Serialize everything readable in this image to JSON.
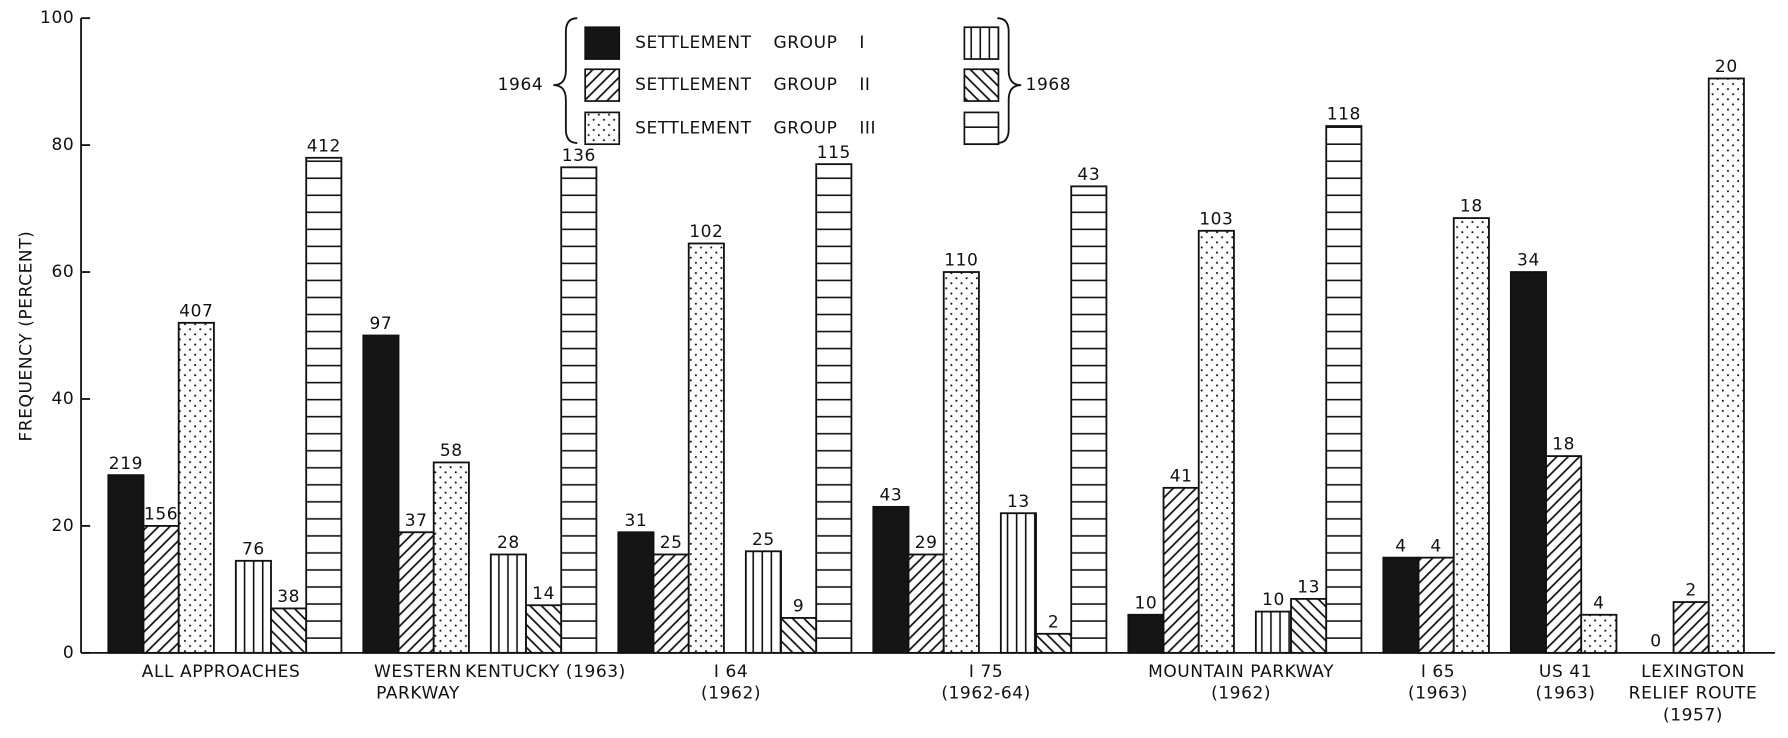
{
  "chart_data": {
    "type": "bar",
    "ylabel": "FREQUENCY (PERCENT)",
    "ylim": [
      0,
      100
    ],
    "yticks": [
      0,
      20,
      40,
      60,
      80,
      100
    ],
    "years": [
      "1964",
      "1968"
    ],
    "categories": [
      [
        "ALL APPROACHES"
      ],
      [
        "WESTERN",
        "PARKWAY"
      ],
      [
        "KENTUCKY (1963)"
      ],
      [
        "I 64",
        "(1962)"
      ],
      [
        "I 75",
        "(1962-64)"
      ],
      [
        "MOUNTAIN PARKWAY",
        "(1962)"
      ],
      [
        "I 65",
        "(1963)"
      ],
      [
        "US 41",
        "(1963)"
      ],
      [
        "LEXINGTON",
        "RELIEF ROUTE",
        "(1957)"
      ]
    ],
    "series": [
      {
        "name": "SETTLEMENT GROUP I",
        "years": [
          {
            "pattern": "solid",
            "values": [
              28,
              50,
              null,
              19,
              23,
              6,
              15,
              60,
              0
            ],
            "counts": [
              219,
              97,
              null,
              31,
              43,
              10,
              4,
              34,
              0
            ]
          },
          {
            "pattern": "vertical",
            "values": [
              14.5,
              null,
              15.5,
              16,
              22,
              6.5,
              null,
              null,
              null
            ],
            "counts": [
              76,
              null,
              28,
              25,
              13,
              10,
              null,
              null,
              null
            ]
          }
        ]
      },
      {
        "name": "SETTLEMENT GROUP II",
        "years": [
          {
            "pattern": "diagonal",
            "values": [
              20,
              19,
              null,
              15.5,
              15.5,
              26,
              15,
              31,
              8
            ],
            "counts": [
              156,
              37,
              null,
              25,
              29,
              41,
              4,
              18,
              2
            ]
          },
          {
            "pattern": "backdiagonal",
            "values": [
              7,
              null,
              7.5,
              5.5,
              3,
              8.5,
              null,
              null,
              null
            ],
            "counts": [
              38,
              null,
              14,
              9,
              2,
              13,
              null,
              null,
              null
            ]
          }
        ]
      },
      {
        "name": "SETTLEMENT GROUP III",
        "years": [
          {
            "pattern": "dots",
            "values": [
              52,
              30,
              null,
              64.5,
              60,
              66.5,
              68.5,
              6,
              90.5
            ],
            "counts": [
              407,
              58,
              null,
              102,
              110,
              103,
              18,
              4,
              20
            ]
          },
          {
            "pattern": "horizontal",
            "values": [
              78,
              null,
              76.5,
              77,
              73.5,
              83,
              null,
              null,
              null
            ],
            "counts": [
              412,
              null,
              136,
              115,
              43,
              118,
              null,
              null,
              null
            ]
          }
        ]
      }
    ]
  }
}
